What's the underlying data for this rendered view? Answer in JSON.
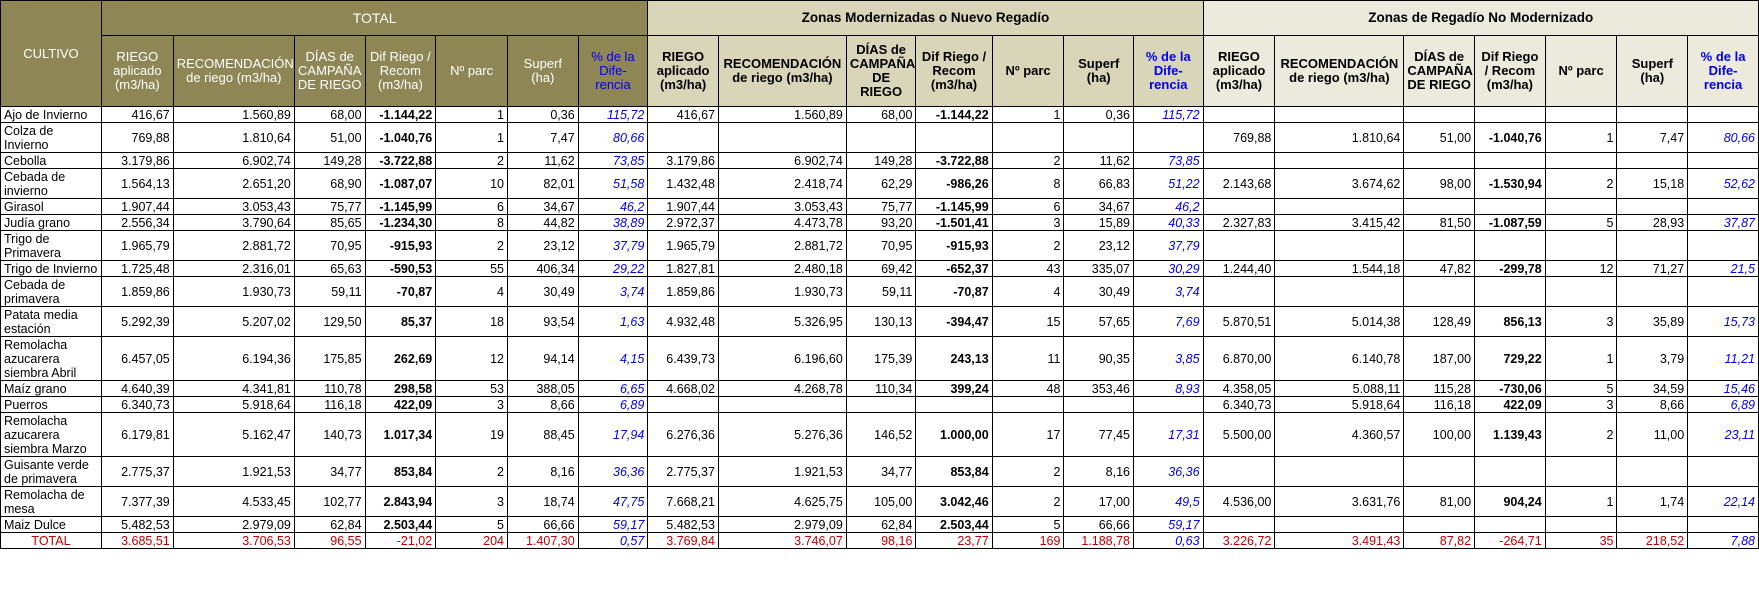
{
  "groups": {
    "total": "TOTAL",
    "modernized": "Zonas Modernizadas o Nuevo Regadío",
    "not_modernized": "Zonas de Regadío No Modernizado"
  },
  "first_col": "CULTIVO",
  "col_headers": [
    "RIEGO aplicado (m3/ha)",
    "RECOMENDACIÓN de riego (m3/ha)",
    "DÍAS de CAMPAÑA DE RIEGO",
    "Dif Riego / Recom (m3/ha)",
    "Nº parc",
    "Superf (ha)",
    "% de la Dife- rencia"
  ],
  "rows": [
    {
      "name": "Ajo de Invierno",
      "h": 1,
      "t": [
        "416,67",
        "1.560,89",
        "68,00",
        "-1.144,22",
        "1",
        "0,36",
        "115,72"
      ],
      "m": [
        "416,67",
        "1.560,89",
        "68,00",
        "-1.144,22",
        "1",
        "0,36",
        "115,72"
      ],
      "n": [
        "",
        "",
        "",
        "",
        "",
        "",
        ""
      ]
    },
    {
      "name": "Colza de Invierno",
      "h": 2,
      "t": [
        "769,88",
        "1.810,64",
        "51,00",
        "-1.040,76",
        "1",
        "7,47",
        "80,66"
      ],
      "m": [
        "",
        "",
        "",
        "",
        "",
        "",
        ""
      ],
      "n": [
        "769,88",
        "1.810,64",
        "51,00",
        "-1.040,76",
        "1",
        "7,47",
        "80,66"
      ]
    },
    {
      "name": "Cebolla",
      "h": 1,
      "t": [
        "3.179,86",
        "6.902,74",
        "149,28",
        "-3.722,88",
        "2",
        "11,62",
        "73,85"
      ],
      "m": [
        "3.179,86",
        "6.902,74",
        "149,28",
        "-3.722,88",
        "2",
        "11,62",
        "73,85"
      ],
      "n": [
        "",
        "",
        "",
        "",
        "",
        "",
        ""
      ]
    },
    {
      "name": "Cebada de invierno",
      "h": 2,
      "t": [
        "1.564,13",
        "2.651,20",
        "68,90",
        "-1.087,07",
        "10",
        "82,01",
        "51,58"
      ],
      "m": [
        "1.432,48",
        "2.418,74",
        "62,29",
        "-986,26",
        "8",
        "66,83",
        "51,22"
      ],
      "n": [
        "2.143,68",
        "3.674,62",
        "98,00",
        "-1.530,94",
        "2",
        "15,18",
        "52,62"
      ]
    },
    {
      "name": "Girasol",
      "h": 1,
      "t": [
        "1.907,44",
        "3.053,43",
        "75,77",
        "-1.145,99",
        "6",
        "34,67",
        "46,2"
      ],
      "m": [
        "1.907,44",
        "3.053,43",
        "75,77",
        "-1.145,99",
        "6",
        "34,67",
        "46,2"
      ],
      "n": [
        "",
        "",
        "",
        "",
        "",
        "",
        ""
      ]
    },
    {
      "name": "Judía grano",
      "h": 1,
      "t": [
        "2.556,34",
        "3.790,64",
        "85,65",
        "-1.234,30",
        "8",
        "44,82",
        "38,89"
      ],
      "m": [
        "2.972,37",
        "4.473,78",
        "93,20",
        "-1.501,41",
        "3",
        "15,89",
        "40,33"
      ],
      "n": [
        "2.327,83",
        "3.415,42",
        "81,50",
        "-1.087,59",
        "5",
        "28,93",
        "37,87"
      ]
    },
    {
      "name": "Trigo de Primavera",
      "h": 2,
      "t": [
        "1.965,79",
        "2.881,72",
        "70,95",
        "-915,93",
        "2",
        "23,12",
        "37,79"
      ],
      "m": [
        "1.965,79",
        "2.881,72",
        "70,95",
        "-915,93",
        "2",
        "23,12",
        "37,79"
      ],
      "n": [
        "",
        "",
        "",
        "",
        "",
        "",
        ""
      ]
    },
    {
      "name": "Trigo de Invierno",
      "h": 1,
      "t": [
        "1.725,48",
        "2.316,01",
        "65,63",
        "-590,53",
        "55",
        "406,34",
        "29,22"
      ],
      "m": [
        "1.827,81",
        "2.480,18",
        "69,42",
        "-652,37",
        "43",
        "335,07",
        "30,29"
      ],
      "n": [
        "1.244,40",
        "1.544,18",
        "47,82",
        "-299,78",
        "12",
        "71,27",
        "21,5"
      ]
    },
    {
      "name": "Cebada de primavera",
      "h": 2,
      "t": [
        "1.859,86",
        "1.930,73",
        "59,11",
        "-70,87",
        "4",
        "30,49",
        "3,74"
      ],
      "m": [
        "1.859,86",
        "1.930,73",
        "59,11",
        "-70,87",
        "4",
        "30,49",
        "3,74"
      ],
      "n": [
        "",
        "",
        "",
        "",
        "",
        "",
        ""
      ]
    },
    {
      "name": "Patata media estación",
      "h": 2,
      "t": [
        "5.292,39",
        "5.207,02",
        "129,50",
        "85,37",
        "18",
        "93,54",
        "1,63"
      ],
      "m": [
        "4.932,48",
        "5.326,95",
        "130,13",
        "-394,47",
        "15",
        "57,65",
        "7,69"
      ],
      "n": [
        "5.870,51",
        "5.014,38",
        "128,49",
        "856,13",
        "3",
        "35,89",
        "15,73"
      ]
    },
    {
      "name": "Remolacha azucarera siembra Abril",
      "h": 3,
      "t": [
        "6.457,05",
        "6.194,36",
        "175,85",
        "262,69",
        "12",
        "94,14",
        "4,15"
      ],
      "m": [
        "6.439,73",
        "6.196,60",
        "175,39",
        "243,13",
        "11",
        "90,35",
        "3,85"
      ],
      "n": [
        "6.870,00",
        "6.140,78",
        "187,00",
        "729,22",
        "1",
        "3,79",
        "11,21"
      ]
    },
    {
      "name": "Maíz grano",
      "h": 1,
      "t": [
        "4.640,39",
        "4.341,81",
        "110,78",
        "298,58",
        "53",
        "388,05",
        "6,65"
      ],
      "m": [
        "4.668,02",
        "4.268,78",
        "110,34",
        "399,24",
        "48",
        "353,46",
        "8,93"
      ],
      "n": [
        "4.358,05",
        "5.088,11",
        "115,28",
        "-730,06",
        "5",
        "34,59",
        "15,46"
      ]
    },
    {
      "name": "Puerros",
      "h": 1,
      "t": [
        "6.340,73",
        "5.918,64",
        "116,18",
        "422,09",
        "3",
        "8,66",
        "6,89"
      ],
      "m": [
        "",
        "",
        "",
        "",
        "",
        "",
        ""
      ],
      "n": [
        "6.340,73",
        "5.918,64",
        "116,18",
        "422,09",
        "3",
        "8,66",
        "6,89"
      ]
    },
    {
      "name": "Remolacha azucarera siembra Marzo",
      "h": 3,
      "t": [
        "6.179,81",
        "5.162,47",
        "140,73",
        "1.017,34",
        "19",
        "88,45",
        "17,94"
      ],
      "m": [
        "6.276,36",
        "5.276,36",
        "146,52",
        "1.000,00",
        "17",
        "77,45",
        "17,31"
      ],
      "n": [
        "5.500,00",
        "4.360,57",
        "100,00",
        "1.139,43",
        "2",
        "11,00",
        "23,11"
      ]
    },
    {
      "name": "Guisante verde de primavera",
      "h": 2,
      "t": [
        "2.775,37",
        "1.921,53",
        "34,77",
        "853,84",
        "2",
        "8,16",
        "36,36"
      ],
      "m": [
        "2.775,37",
        "1.921,53",
        "34,77",
        "853,84",
        "2",
        "8,16",
        "36,36"
      ],
      "n": [
        "",
        "",
        "",
        "",
        "",
        "",
        ""
      ]
    },
    {
      "name": "Remolacha de mesa",
      "h": 2,
      "t": [
        "7.377,39",
        "4.533,45",
        "102,77",
        "2.843,94",
        "3",
        "18,74",
        "47,75"
      ],
      "m": [
        "7.668,21",
        "4.625,75",
        "105,00",
        "3.042,46",
        "2",
        "17,00",
        "49,5"
      ],
      "n": [
        "4.536,00",
        "3.631,76",
        "81,00",
        "904,24",
        "1",
        "1,74",
        "22,14"
      ]
    },
    {
      "name": "Maiz Dulce",
      "h": 1,
      "t": [
        "5.482,53",
        "2.979,09",
        "62,84",
        "2.503,44",
        "5",
        "66,66",
        "59,17"
      ],
      "m": [
        "5.482,53",
        "2.979,09",
        "62,84",
        "2.503,44",
        "5",
        "66,66",
        "59,17"
      ],
      "n": [
        "",
        "",
        "",
        "",
        "",
        "",
        ""
      ]
    }
  ],
  "total_row": {
    "name": "TOTAL",
    "t": [
      "3.685,51",
      "3.706,53",
      "96,55",
      "-21,02",
      "204",
      "1.407,30",
      "0,57"
    ],
    "m": [
      "3.769,84",
      "3.746,07",
      "98,16",
      "23,77",
      "169",
      "1.188,78",
      "0,63"
    ],
    "n": [
      "3.226,72",
      "3.491,43",
      "87,82",
      "-264,71",
      "35",
      "218,52",
      "7,88"
    ]
  }
}
